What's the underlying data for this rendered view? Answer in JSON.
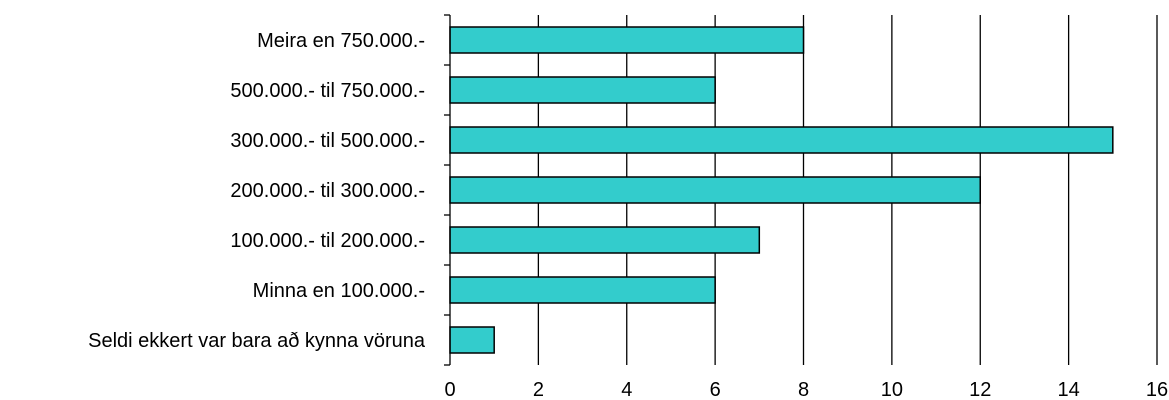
{
  "chart_data": {
    "type": "bar",
    "orientation": "horizontal",
    "categories": [
      "Meira en 750.000.-",
      "500.000.- til 750.000.-",
      "300.000.- til 500.000.-",
      "200.000.- til 300.000.-",
      "100.000.- til 200.000.-",
      "Minna en 100.000.-",
      "Seldi ekkert var bara að kynna vöruna"
    ],
    "values": [
      8,
      6,
      15,
      12,
      7,
      6,
      1
    ],
    "xlim": [
      0,
      16
    ],
    "xticks": [
      "0",
      "2",
      "4",
      "6",
      "8",
      "10",
      "12",
      "14",
      "16"
    ],
    "title": "",
    "xlabel": "",
    "ylabel": "",
    "grid": "vertical",
    "legend": "none",
    "colors": {
      "bar_fill": "#33cccc",
      "bar_stroke": "#000000",
      "grid": "#000000"
    }
  }
}
